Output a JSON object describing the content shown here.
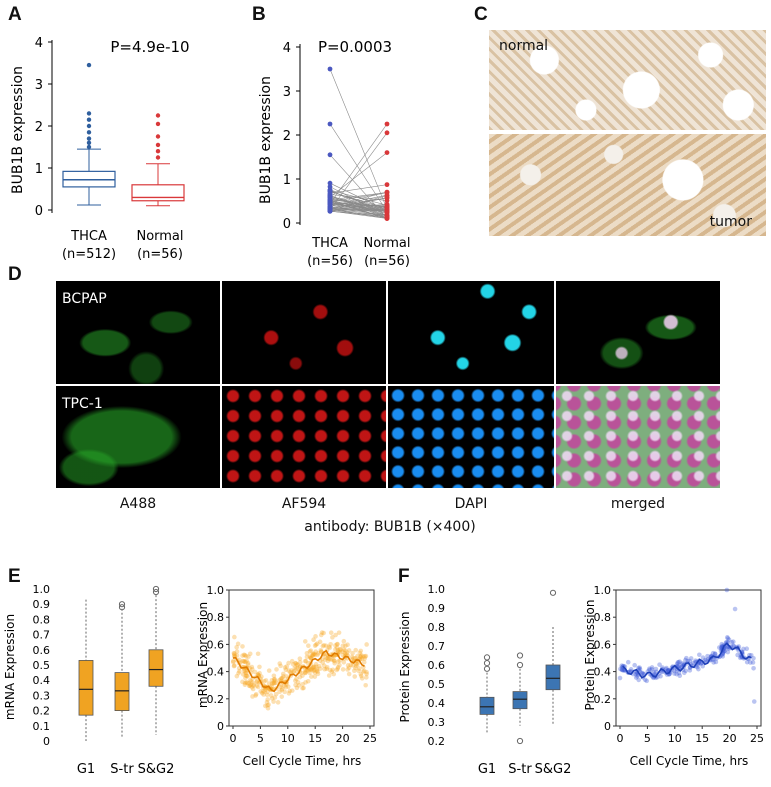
{
  "panels": {
    "A": {
      "label": "A",
      "pvalue": "P=4.9e-10",
      "ylabel": "BUB1B expression",
      "yticks": [
        "0",
        "1",
        "2",
        "3",
        "4"
      ],
      "groups": [
        {
          "name": "THCA",
          "n": "(n=512)",
          "color": "#2f5f9e",
          "q1": 0.55,
          "median": 0.72,
          "q3": 0.92,
          "whisker_low": 0.12,
          "whisker_high": 1.45,
          "outliers": [
            1.5,
            1.6,
            1.7,
            1.85,
            2.0,
            2.15,
            2.3,
            3.45
          ]
        },
        {
          "name": "Normal",
          "n": "(n=56)",
          "color": "#d9383a",
          "q1": 0.22,
          "median": 0.3,
          "q3": 0.6,
          "whisker_low": 0.1,
          "whisker_high": 1.1,
          "outliers": [
            1.25,
            1.4,
            1.55,
            1.75,
            2.05,
            2.25
          ]
        }
      ]
    },
    "B": {
      "label": "B",
      "pvalue": "P=0.0003",
      "ylabel": "BUB1B expression",
      "yticks": [
        "0",
        "1",
        "2",
        "3",
        "4"
      ],
      "groups": [
        {
          "name": "THCA",
          "n": "(n=56)",
          "color": "#4b58c0"
        },
        {
          "name": "Normal",
          "n": "(n=56)",
          "color": "#d9383a"
        }
      ]
    },
    "C": {
      "label": "C",
      "top_label": "normal",
      "bottom_label": "tumor"
    },
    "D": {
      "label": "D",
      "rows": [
        "BCPAP",
        "TPC-1"
      ],
      "channels": [
        "A488",
        "AF594",
        "DAPI",
        "merged"
      ],
      "caption": "antibody: BUB1B (×400)"
    },
    "E": {
      "label": "E",
      "box_ylabel": "mRNA Expression",
      "box_yticks": [
        "0",
        "0.1",
        "0.2",
        "0.3",
        "0.4",
        "0.5",
        "0.6",
        "0.7",
        "0.8",
        "0.9",
        "1.0"
      ],
      "box_groups": [
        {
          "name": "G1",
          "q1": 0.17,
          "median": 0.34,
          "q3": 0.53,
          "whisker_low": 0.0,
          "whisker_high": 0.93,
          "outliers": []
        },
        {
          "name": "S-tr",
          "q1": 0.2,
          "median": 0.33,
          "q3": 0.45,
          "whisker_low": 0.02,
          "whisker_high": 0.87,
          "outliers": [
            0.88,
            0.9
          ]
        },
        {
          "name": "S&G2",
          "q1": 0.36,
          "median": 0.47,
          "q3": 0.6,
          "whisker_low": 0.04,
          "whisker_high": 0.96,
          "outliers": [
            0.98,
            1.0
          ]
        }
      ],
      "box_color": "#f0a322",
      "scatter_ylabel": "mRNA Expression",
      "scatter_xlabel": "Cell Cycle Time, hrs",
      "scatter_xticks": [
        "0",
        "5",
        "10",
        "15",
        "20",
        "25"
      ],
      "scatter_yticks": [
        "0",
        "0.2",
        "0.4",
        "0.6",
        "0.8",
        "1.0"
      ],
      "scatter_color": "#f5a623"
    },
    "F": {
      "label": "F",
      "box_ylabel": "Protein Expression",
      "box_yticks": [
        "0.2",
        "0.3",
        "0.4",
        "0.5",
        "0.6",
        "0.7",
        "0.8",
        "0.9",
        "1.0"
      ],
      "box_groups": [
        {
          "name": "G1",
          "q1": 0.34,
          "median": 0.38,
          "q3": 0.43,
          "whisker_low": 0.24,
          "whisker_high": 0.56,
          "outliers": [
            0.58,
            0.61,
            0.64
          ]
        },
        {
          "name": "S-tr",
          "q1": 0.37,
          "median": 0.42,
          "q3": 0.46,
          "whisker_low": 0.28,
          "whisker_high": 0.58,
          "outliers": [
            0.6,
            0.65,
            0.2
          ]
        },
        {
          "name": "S&G2",
          "q1": 0.47,
          "median": 0.53,
          "q3": 0.6,
          "whisker_low": 0.28,
          "whisker_high": 0.8,
          "outliers": [
            0.98
          ]
        }
      ],
      "box_color": "#3c75b3",
      "scatter_ylabel": "Protein Expression",
      "scatter_xlabel": "Cell Cycle Time, hrs",
      "scatter_xticks": [
        "0",
        "5",
        "10",
        "15",
        "20",
        "25"
      ],
      "scatter_yticks": [
        "0",
        "0.2",
        "0.4",
        "0.6",
        "0.8",
        "1.0"
      ],
      "scatter_color": "#3a56d6"
    }
  }
}
